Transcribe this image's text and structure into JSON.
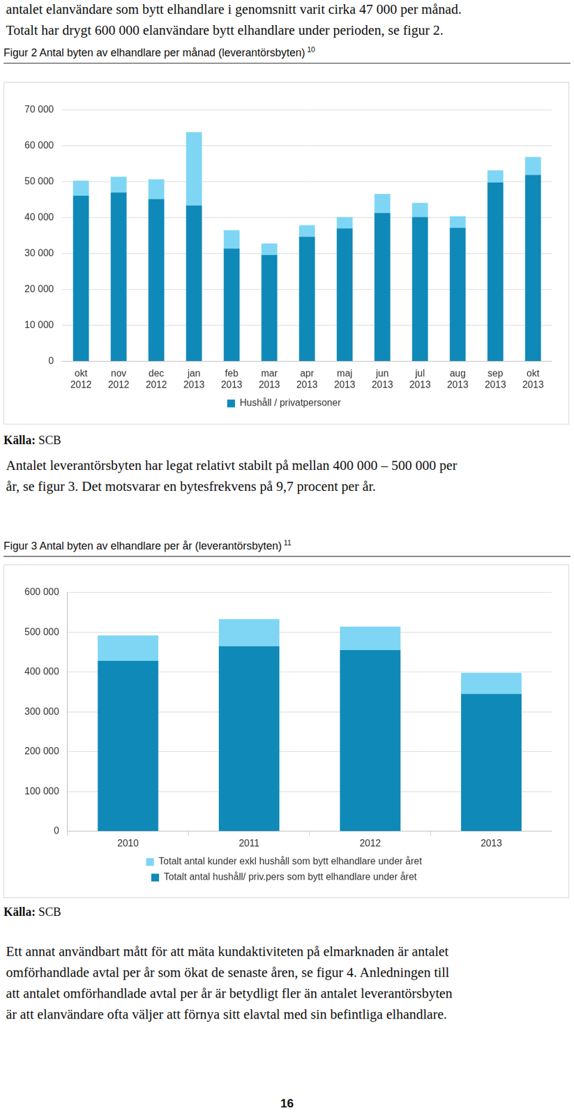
{
  "top_text": [
    "antalet elanvändare som bytt elhandlare i genomsnitt varit cirka 47 000 per månad.",
    "Totalt har drygt 600 000 elanvändare bytt elhandlare under perioden, se figur 2."
  ],
  "chart_data": [
    {
      "type": "bar",
      "title": "Figur 2 Antal byten av elhandlare per månad (leverantörsbyten)",
      "title_note": "10",
      "source": "Källa: SCB",
      "categories": [
        "okt 2012",
        "nov 2012",
        "dec 2012",
        "jan 2013",
        "feb 2013",
        "mar 2013",
        "apr 2013",
        "maj 2013",
        "jun 2013",
        "jul 2013",
        "aug 2013",
        "sep 2013",
        "okt 2013"
      ],
      "series": [
        {
          "name": "Hushåll / privatpersoner",
          "color": "#0f89b8",
          "values": [
            46100,
            47000,
            45200,
            43400,
            31400,
            29600,
            34700,
            37000,
            41300,
            40200,
            37200,
            49800,
            51900
          ]
        },
        {
          "color": "#7ed6f4",
          "values": [
            4200,
            4400,
            5500,
            20400,
            5100,
            3200,
            3200,
            3200,
            5300,
            3900,
            3200,
            3400,
            5000
          ]
        }
      ],
      "stacked": true,
      "ylim": [
        0,
        70000
      ],
      "yticks": [
        0,
        {
          "value": 10000,
          "label": "10 000"
        },
        {
          "value": 20000,
          "label": "20 000"
        },
        {
          "value": 30000,
          "label": "30 000"
        },
        {
          "value": 40000,
          "label": "40 000"
        },
        {
          "value": 50000,
          "label": "50 000"
        },
        {
          "value": 60000,
          "label": "60 000"
        },
        {
          "value": 70000,
          "label": "70 000"
        }
      ],
      "grid": true,
      "legend": "bottom"
    },
    {
      "type": "bar",
      "title": "Figur 3 Antal byten av elhandlare per år (leverantörsbyten)",
      "title_note": "11",
      "source": "Källa: SCB",
      "categories": [
        "2010",
        "2011",
        "2012",
        "2013"
      ],
      "series": [
        {
          "name": "Totalt antal hushåll/ priv.pers som bytt elhandlare under året",
          "color": "#0f89b8",
          "values": [
            428000,
            465000,
            455000,
            345000
          ]
        },
        {
          "name": "Totalt antal kunder exkl hushåll som bytt elhandlare under året",
          "color": "#7ed6f4",
          "values": [
            64000,
            68000,
            59000,
            53000
          ]
        }
      ],
      "stacked": true,
      "ylim": [
        0,
        600000
      ],
      "yticks": [
        0,
        {
          "value": 100000,
          "label": "100 000"
        },
        {
          "value": 200000,
          "label": "200 000"
        },
        {
          "value": 300000,
          "label": "300 000"
        },
        {
          "value": 400000,
          "label": "400 000"
        },
        {
          "value": 500000,
          "label": "500 000"
        },
        {
          "value": 600000,
          "label": "600 000"
        }
      ],
      "grid": true,
      "legend": "bottom"
    }
  ],
  "middle_text": [
    "Antalet leverantörsbyten har legat relativt stabilt på mellan 400 000 – 500 000 per",
    "år, se figur 3. Det motsvarar en bytesfrekvens på 9,7 procent per år."
  ],
  "bottom_text": [
    "Ett annat användbart mått för att mäta kundaktiviteten på elmarknaden är antalet",
    "omförhandlade avtal per år som ökat de senaste åren, se figur 4. Anledningen till",
    "att antalet omförhandlade avtal per år är betydligt fler än antalet leverantörsbyten",
    "är att elanvändare ofta väljer att förnya sitt elavtal med sin befintliga elhandlare."
  ],
  "page_number": "16"
}
